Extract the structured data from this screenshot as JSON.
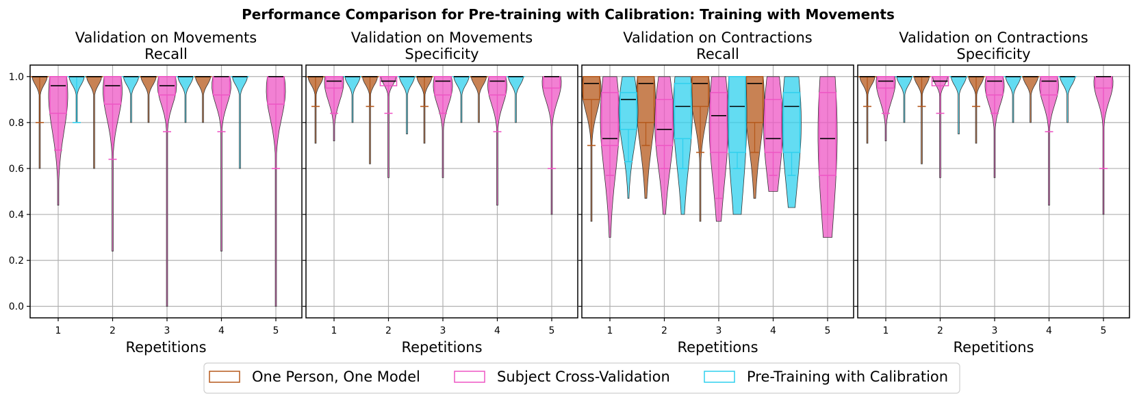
{
  "figure": {
    "title": "Performance Comparison for Pre-training with Calibration: Training with Movements"
  },
  "legend": {
    "placement": "bottom-center",
    "entries": [
      {
        "label": "One Person, One Model",
        "color": "#b5581b"
      },
      {
        "label": "Subject Cross-Validation",
        "color": "#ee55c4"
      },
      {
        "label": "Pre-Training with Calibration",
        "color": "#2fd0ee"
      }
    ]
  },
  "chart_data": [
    {
      "type": "violin+box",
      "title": "Validation on Movements\nRecall",
      "title_lines": [
        "Validation on Movements",
        "Recall"
      ],
      "xlabel": "Repetitions",
      "ylabel": "",
      "categories": [
        "1",
        "2",
        "3",
        "4",
        "5"
      ],
      "ylim": [
        -0.05,
        1.05
      ],
      "yticks": [
        "0.0",
        "0.2",
        "0.4",
        "0.6",
        "0.8",
        "1.0"
      ],
      "grid": true,
      "series": [
        {
          "name": "One Person, One Model",
          "color": "#b5581b",
          "median": [
            1.0,
            1.0,
            1.0,
            1.0,
            null
          ],
          "q1": [
            1.0,
            1.0,
            1.0,
            1.0,
            null
          ],
          "q3": [
            1.0,
            1.0,
            1.0,
            1.0,
            null
          ],
          "whisker_low": [
            0.8,
            1.0,
            1.0,
            1.0,
            null
          ],
          "whisker_high": [
            1.0,
            1.0,
            1.0,
            1.0,
            null
          ],
          "min": [
            0.6,
            0.6,
            0.8,
            0.8,
            null
          ],
          "max": [
            1.0,
            1.0,
            1.0,
            1.0,
            null
          ]
        },
        {
          "name": "Subject Cross-Validation",
          "color": "#ee55c4",
          "median": [
            0.96,
            0.96,
            0.96,
            1.0,
            1.0
          ],
          "q1": [
            0.84,
            0.88,
            0.92,
            0.92,
            0.88
          ],
          "q3": [
            1.0,
            1.0,
            1.0,
            1.0,
            1.0
          ],
          "whisker_low": [
            0.68,
            0.64,
            0.76,
            0.76,
            0.6
          ],
          "whisker_high": [
            1.0,
            1.0,
            1.0,
            1.0,
            1.0
          ],
          "min": [
            0.44,
            0.24,
            0.0,
            0.24,
            0.0
          ],
          "max": [
            1.0,
            1.0,
            1.0,
            1.0,
            1.0
          ]
        },
        {
          "name": "Pre-Training with Calibration",
          "color": "#2fd0ee",
          "median": [
            1.0,
            1.0,
            1.0,
            1.0,
            null
          ],
          "q1": [
            1.0,
            1.0,
            1.0,
            1.0,
            null
          ],
          "q3": [
            1.0,
            1.0,
            1.0,
            1.0,
            null
          ],
          "whisker_low": [
            0.8,
            1.0,
            1.0,
            1.0,
            null
          ],
          "whisker_high": [
            1.0,
            1.0,
            1.0,
            1.0,
            null
          ],
          "min": [
            0.8,
            0.8,
            0.8,
            0.6,
            null
          ],
          "max": [
            1.0,
            1.0,
            1.0,
            1.0,
            null
          ]
        }
      ]
    },
    {
      "type": "violin+box",
      "title": "Validation on Movements\nSpecificity",
      "title_lines": [
        "Validation on Movements",
        "Specificity"
      ],
      "xlabel": "Repetitions",
      "ylabel": "",
      "categories": [
        "1",
        "2",
        "3",
        "4",
        "5"
      ],
      "ylim": [
        -0.05,
        1.05
      ],
      "yticks": [
        "0.0",
        "0.2",
        "0.4",
        "0.6",
        "0.8",
        "1.0"
      ],
      "grid": true,
      "series": [
        {
          "name": "One Person, One Model",
          "color": "#b5581b",
          "median": [
            1.0,
            1.0,
            1.0,
            1.0,
            null
          ],
          "q1": [
            1.0,
            1.0,
            1.0,
            1.0,
            null
          ],
          "q3": [
            1.0,
            1.0,
            1.0,
            1.0,
            null
          ],
          "whisker_low": [
            0.87,
            0.87,
            0.87,
            1.0,
            null
          ],
          "whisker_high": [
            1.0,
            1.0,
            1.0,
            1.0,
            null
          ],
          "min": [
            0.71,
            0.62,
            0.71,
            0.8,
            null
          ],
          "max": [
            1.0,
            1.0,
            1.0,
            1.0,
            null
          ]
        },
        {
          "name": "Subject Cross-Validation",
          "color": "#ee55c4",
          "median": [
            0.98,
            0.98,
            0.98,
            0.98,
            1.0
          ],
          "q1": [
            0.95,
            0.96,
            0.92,
            0.92,
            0.95
          ],
          "q3": [
            1.0,
            1.0,
            1.0,
            1.0,
            1.0
          ],
          "whisker_low": [
            0.84,
            0.84,
            0.84,
            0.76,
            0.6
          ],
          "whisker_high": [
            1.0,
            1.0,
            1.0,
            1.0,
            1.0
          ],
          "min": [
            0.72,
            0.56,
            0.56,
            0.44,
            0.4
          ],
          "max": [
            1.0,
            1.0,
            1.0,
            1.0,
            1.0
          ]
        },
        {
          "name": "Pre-Training with Calibration",
          "color": "#2fd0ee",
          "median": [
            1.0,
            1.0,
            1.0,
            1.0,
            null
          ],
          "q1": [
            1.0,
            1.0,
            1.0,
            1.0,
            null
          ],
          "q3": [
            1.0,
            1.0,
            1.0,
            1.0,
            null
          ],
          "whisker_low": [
            1.0,
            1.0,
            1.0,
            1.0,
            null
          ],
          "whisker_high": [
            1.0,
            1.0,
            1.0,
            1.0,
            null
          ],
          "min": [
            0.8,
            0.75,
            0.8,
            0.8,
            null
          ],
          "max": [
            1.0,
            1.0,
            1.0,
            1.0,
            null
          ]
        }
      ]
    },
    {
      "type": "violin+box",
      "title": "Validation on Contractions\nRecall",
      "title_lines": [
        "Validation on Contractions",
        "Recall"
      ],
      "xlabel": "Repetitions",
      "ylabel": "",
      "categories": [
        "1",
        "2",
        "3",
        "4",
        "5"
      ],
      "ylim": [
        -0.05,
        1.05
      ],
      "yticks": [
        "0.0",
        "0.2",
        "0.4",
        "0.6",
        "0.8",
        "1.0"
      ],
      "grid": true,
      "series": [
        {
          "name": "One Person, One Model",
          "color": "#b5581b",
          "median": [
            0.97,
            0.97,
            0.97,
            0.97,
            null
          ],
          "q1": [
            0.9,
            0.8,
            0.87,
            0.8,
            null
          ],
          "q3": [
            1.0,
            1.0,
            1.0,
            1.0,
            null
          ],
          "whisker_low": [
            0.7,
            0.7,
            0.67,
            0.67,
            null
          ],
          "whisker_high": [
            1.0,
            1.0,
            1.0,
            1.0,
            null
          ],
          "min": [
            0.37,
            0.47,
            0.37,
            0.47,
            null
          ],
          "max": [
            1.0,
            1.0,
            1.0,
            1.0,
            null
          ]
        },
        {
          "name": "Subject Cross-Validation",
          "color": "#ee55c4",
          "median": [
            0.73,
            0.77,
            0.83,
            0.73,
            0.73
          ],
          "q1": [
            0.7,
            0.7,
            0.67,
            0.67,
            0.57
          ],
          "q3": [
            0.93,
            0.9,
            0.93,
            0.9,
            0.93
          ],
          "whisker_low": [
            0.57,
            0.6,
            0.47,
            0.57,
            0.4
          ],
          "whisker_high": [
            1.0,
            1.0,
            1.0,
            1.0,
            1.0
          ],
          "min": [
            0.3,
            0.4,
            0.37,
            0.5,
            0.3
          ],
          "max": [
            1.0,
            1.0,
            1.0,
            1.0,
            1.0
          ]
        },
        {
          "name": "Pre-Training with Calibration",
          "color": "#2fd0ee",
          "median": [
            0.9,
            0.87,
            0.87,
            0.87,
            null
          ],
          "q1": [
            0.77,
            0.73,
            0.67,
            0.67,
            null
          ],
          "q3": [
            0.93,
            0.97,
            1.0,
            0.93,
            null
          ],
          "whisker_low": [
            0.63,
            0.6,
            0.6,
            0.57,
            null
          ],
          "whisker_high": [
            1.0,
            1.0,
            1.0,
            1.0,
            null
          ],
          "min": [
            0.47,
            0.4,
            0.4,
            0.43,
            null
          ],
          "max": [
            1.0,
            1.0,
            1.0,
            1.0,
            null
          ]
        }
      ]
    },
    {
      "type": "violin+box",
      "title": "Validation on Contractions\nSpecificity",
      "title_lines": [
        "Validation on Contractions",
        "Specificity"
      ],
      "xlabel": "Repetitions",
      "ylabel": "",
      "categories": [
        "1",
        "2",
        "3",
        "4",
        "5"
      ],
      "ylim": [
        -0.05,
        1.05
      ],
      "yticks": [
        "0.0",
        "0.2",
        "0.4",
        "0.6",
        "0.8",
        "1.0"
      ],
      "grid": true,
      "series": [
        {
          "name": "One Person, One Model",
          "color": "#b5581b",
          "median": [
            1.0,
            1.0,
            1.0,
            1.0,
            null
          ],
          "q1": [
            1.0,
            1.0,
            1.0,
            1.0,
            null
          ],
          "q3": [
            1.0,
            1.0,
            1.0,
            1.0,
            null
          ],
          "whisker_low": [
            0.87,
            0.87,
            0.87,
            1.0,
            null
          ],
          "whisker_high": [
            1.0,
            1.0,
            1.0,
            1.0,
            null
          ],
          "min": [
            0.71,
            0.62,
            0.71,
            0.8,
            null
          ],
          "max": [
            1.0,
            1.0,
            1.0,
            1.0,
            null
          ]
        },
        {
          "name": "Subject Cross-Validation",
          "color": "#ee55c4",
          "median": [
            0.98,
            0.98,
            0.98,
            0.98,
            1.0
          ],
          "q1": [
            0.95,
            0.96,
            0.92,
            0.92,
            0.95
          ],
          "q3": [
            1.0,
            1.0,
            1.0,
            1.0,
            1.0
          ],
          "whisker_low": [
            0.84,
            0.84,
            0.84,
            0.76,
            0.6
          ],
          "whisker_high": [
            1.0,
            1.0,
            1.0,
            1.0,
            1.0
          ],
          "min": [
            0.72,
            0.56,
            0.56,
            0.44,
            0.4
          ],
          "max": [
            1.0,
            1.0,
            1.0,
            1.0,
            1.0
          ]
        },
        {
          "name": "Pre-Training with Calibration",
          "color": "#2fd0ee",
          "median": [
            1.0,
            1.0,
            1.0,
            1.0,
            null
          ],
          "q1": [
            1.0,
            1.0,
            1.0,
            1.0,
            null
          ],
          "q3": [
            1.0,
            1.0,
            1.0,
            1.0,
            null
          ],
          "whisker_low": [
            1.0,
            1.0,
            1.0,
            1.0,
            null
          ],
          "whisker_high": [
            1.0,
            1.0,
            1.0,
            1.0,
            null
          ],
          "min": [
            0.8,
            0.75,
            0.8,
            0.8,
            null
          ],
          "max": [
            1.0,
            1.0,
            1.0,
            1.0,
            null
          ]
        }
      ]
    }
  ]
}
